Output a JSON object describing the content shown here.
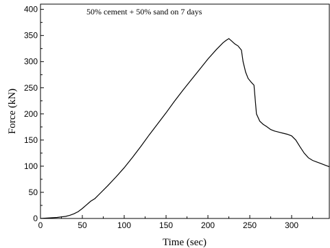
{
  "chart_data": {
    "type": "line",
    "title": "",
    "annotation": "50% cement + 50% sand on 7 days",
    "xlabel": "Time (sec)",
    "ylabel": "Force (kN)",
    "xlim": [
      0,
      345
    ],
    "ylim": [
      0,
      410
    ],
    "xticks": [
      0,
      50,
      100,
      150,
      200,
      250,
      300
    ],
    "yticks": [
      0,
      50,
      100,
      150,
      200,
      250,
      300,
      350,
      400
    ],
    "grid": false,
    "legend": "none",
    "line_color": "#000000",
    "series": [
      {
        "x": [
          0,
          10,
          20,
          25,
          30,
          35,
          40,
          45,
          50,
          55,
          60,
          65,
          70,
          80,
          90,
          100,
          110,
          120,
          130,
          140,
          150,
          160,
          170,
          180,
          190,
          200,
          210,
          218,
          222,
          225,
          228,
          232,
          236,
          240,
          242,
          245,
          248,
          252,
          255,
          258,
          262,
          266,
          270,
          275,
          280,
          285,
          290,
          295,
          300,
          305,
          310,
          315,
          320,
          325,
          330,
          335,
          340,
          345
        ],
        "y": [
          0,
          1,
          2,
          3,
          4,
          6,
          9,
          13,
          19,
          26,
          33,
          38,
          46,
          62,
          79,
          97,
          117,
          138,
          160,
          181,
          202,
          224,
          245,
          265,
          285,
          305,
          323,
          336,
          341,
          344,
          340,
          334,
          330,
          322,
          300,
          280,
          268,
          260,
          255,
          200,
          186,
          180,
          176,
          170,
          167,
          165,
          163,
          161,
          158,
          150,
          137,
          125,
          116,
          111,
          108,
          105,
          102,
          99
        ]
      }
    ]
  }
}
